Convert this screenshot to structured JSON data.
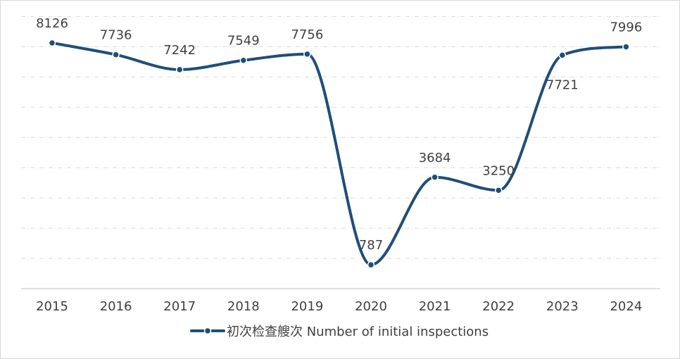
{
  "chart_data": {
    "type": "line",
    "smooth": true,
    "categories": [
      "2015",
      "2016",
      "2017",
      "2018",
      "2019",
      "2020",
      "2021",
      "2022",
      "2023",
      "2024"
    ],
    "series": [
      {
        "name": "初次检查艘次 Number of initial inspections",
        "values": [
          8126,
          7736,
          7242,
          7549,
          7756,
          787,
          3684,
          3250,
          7721,
          7996
        ],
        "color": "#1f4e79"
      }
    ],
    "data_labels": [
      "8126",
      "7736",
      "7242",
      "7549",
      "7756",
      "787",
      "3684",
      "3250",
      "7721",
      "7996"
    ],
    "title": "",
    "xlabel": "",
    "ylabel": "",
    "ylim": [
      0,
      9000
    ],
    "grid": "horizontal dash-dot",
    "legend_position": "bottom"
  }
}
